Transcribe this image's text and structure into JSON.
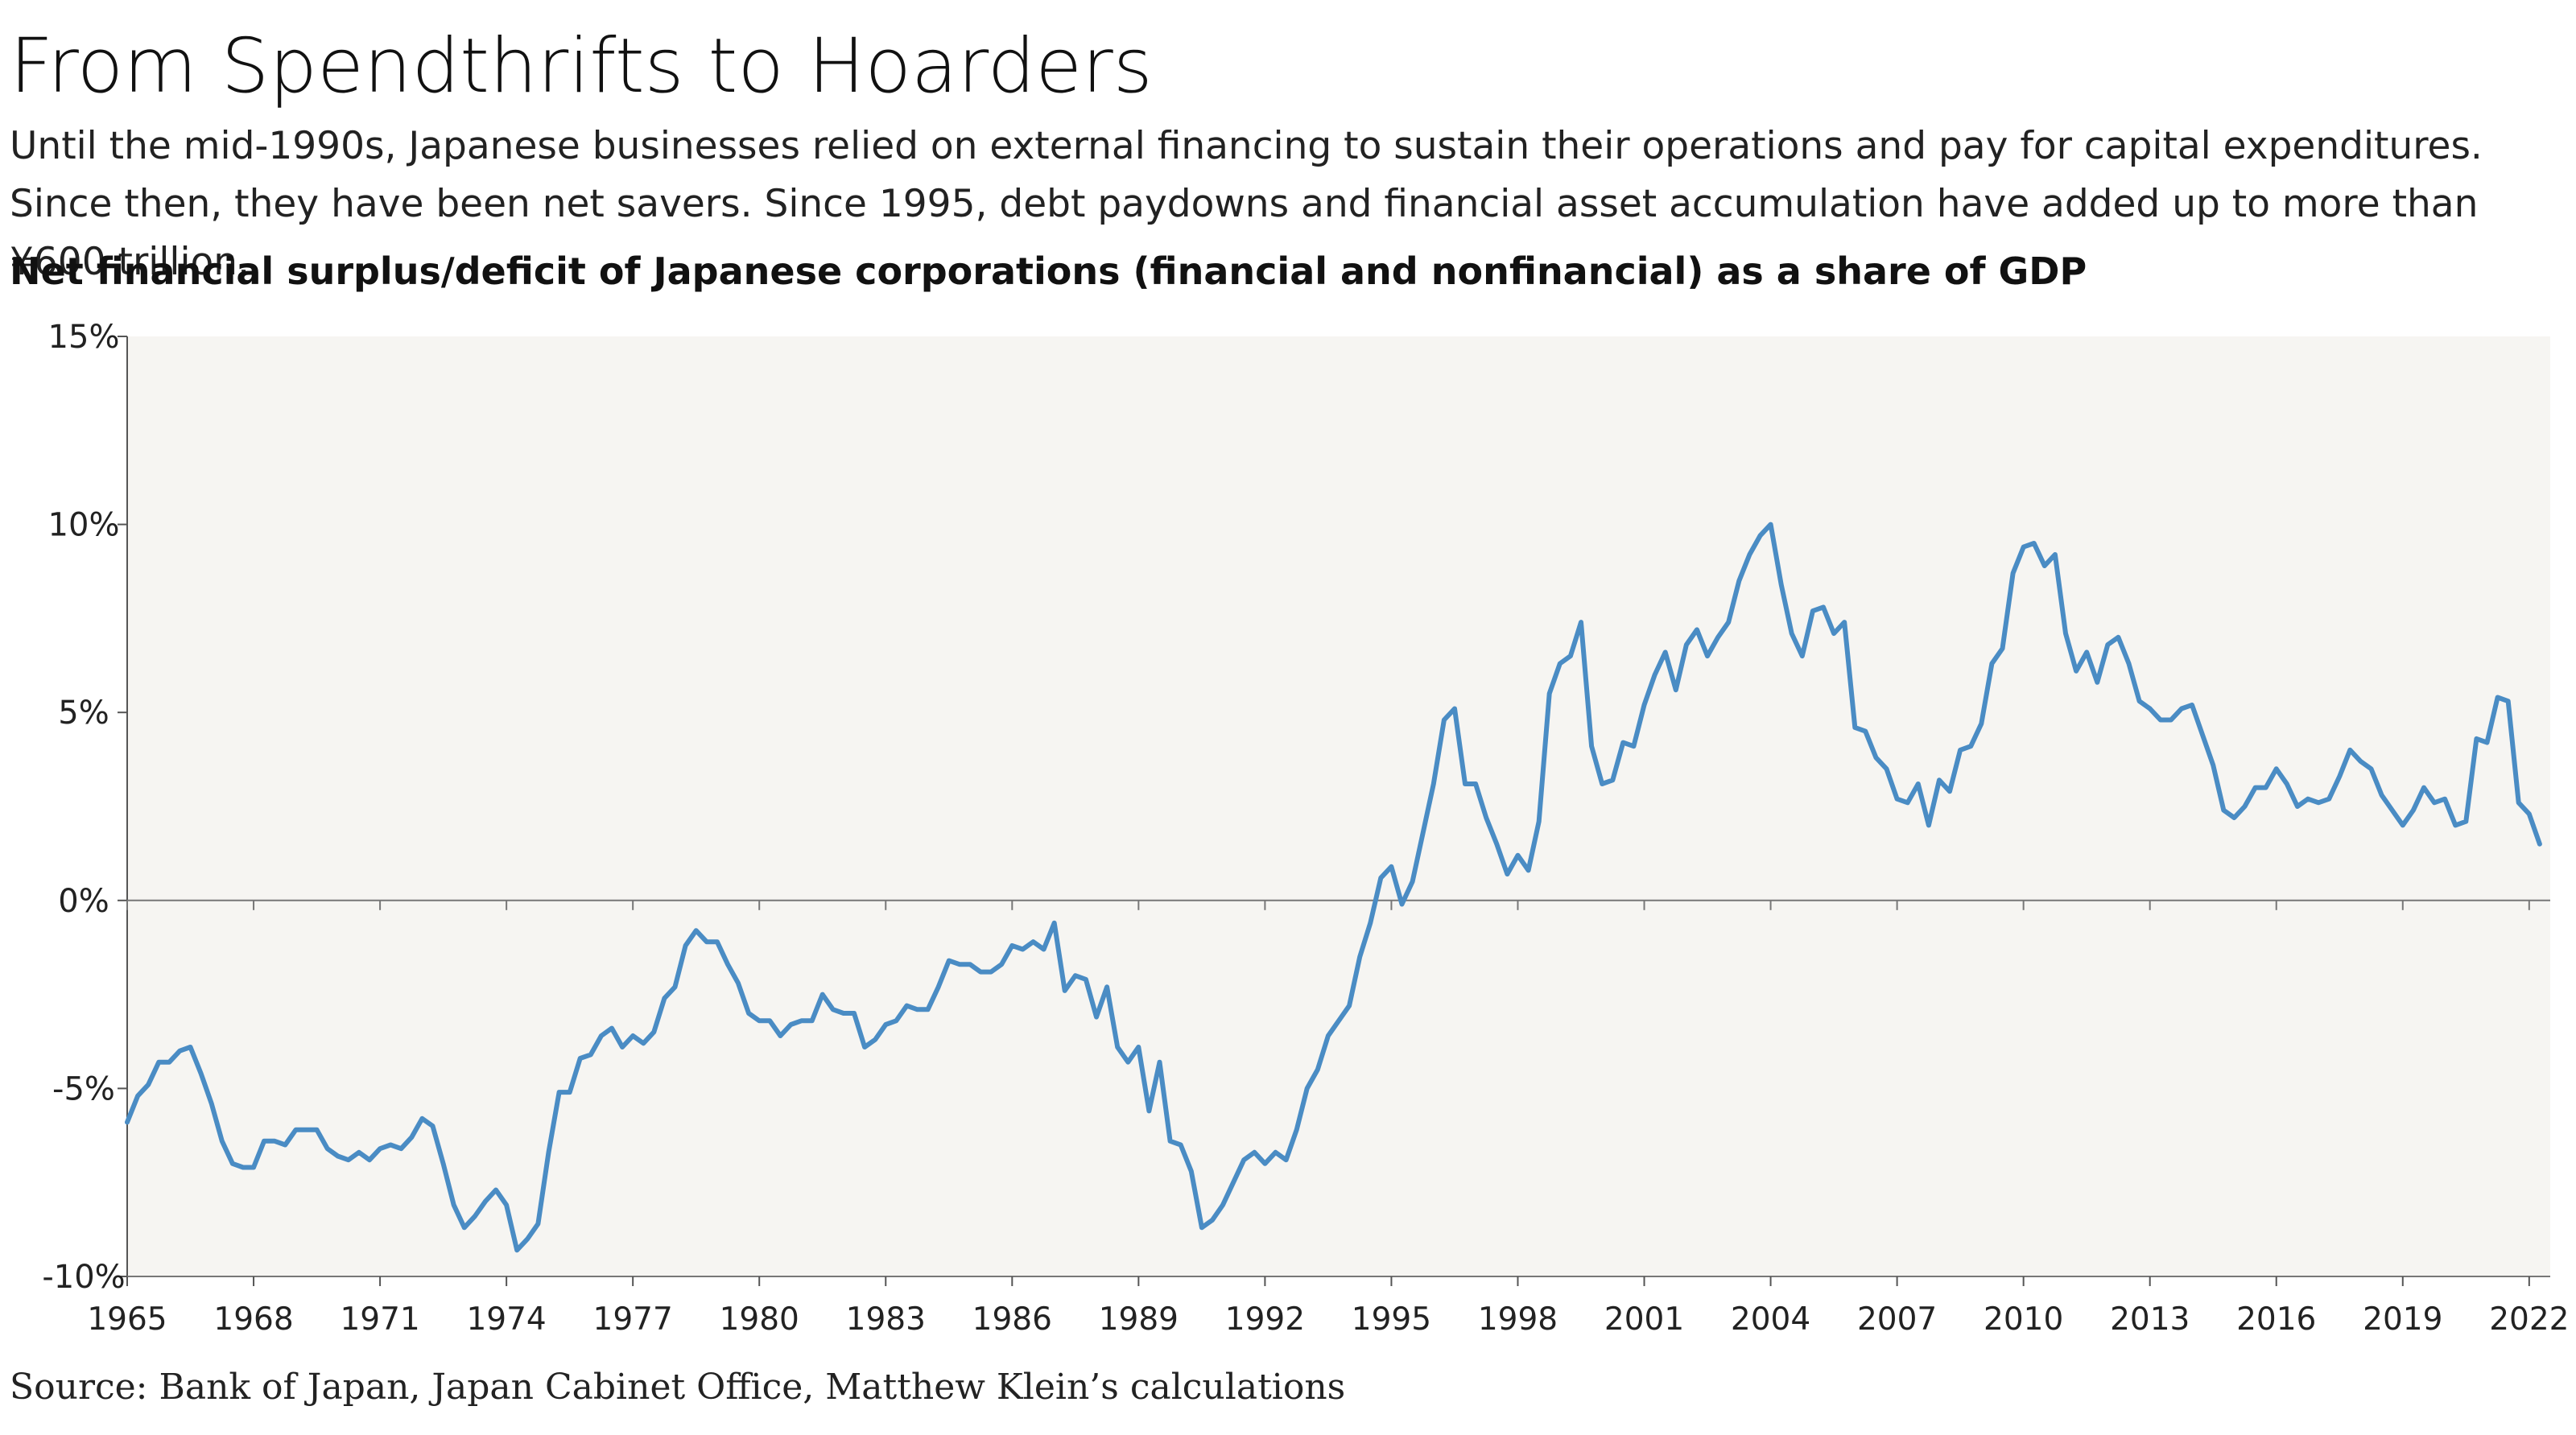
{
  "title": "From Spendthrifts to Hoarders",
  "subtitle": "Until the mid-1990s, Japanese businesses relied on external financing to sustain their operations and pay for capital expenditures. Since then, they have been net savers. Since 1995, debt paydowns and financial asset accumulation have added up to more than ¥600 trillion.",
  "chart_heading": "Net financial surplus/deficit of Japanese corporations (financial and nonfinancial) as a share of GDP",
  "source": "Source: Bank of Japan, Japan Cabinet Office, Matthew Klein’s calculations",
  "chart_data": {
    "type": "line",
    "title": "Net financial surplus/deficit of Japanese corporations (financial and nonfinancial) as a share of GDP",
    "xlabel": "",
    "ylabel": "",
    "xlim": [
      1965,
      2022.5
    ],
    "ylim": [
      -10,
      15
    ],
    "y_ticks": [
      -10,
      -5,
      0,
      5,
      10,
      15
    ],
    "y_tick_labels": [
      "-10%",
      "-5%",
      "0%",
      "5%",
      "10%",
      "15%"
    ],
    "x_ticks": [
      1965,
      1968,
      1971,
      1974,
      1977,
      1980,
      1983,
      1986,
      1989,
      1992,
      1995,
      1998,
      2001,
      2004,
      2007,
      2010,
      2013,
      2016,
      2019,
      2022
    ],
    "x_tick_labels": [
      "1965",
      "1968",
      "1971",
      "1974",
      "1977",
      "1980",
      "1983",
      "1986",
      "1989",
      "1992",
      "1995",
      "1998",
      "2001",
      "2004",
      "2007",
      "2010",
      "2013",
      "2016",
      "2019",
      "2022"
    ],
    "grid": false,
    "line_color": "#4a8cc4",
    "background_color": "#f6f5f2",
    "series": [
      {
        "name": "",
        "points": [
          [
            1965.0,
            -5.9
          ],
          [
            1965.25,
            -5.2
          ],
          [
            1965.5,
            -4.9
          ],
          [
            1965.75,
            -4.3
          ],
          [
            1966.0,
            -4.3
          ],
          [
            1966.25,
            -4.0
          ],
          [
            1966.5,
            -3.9
          ],
          [
            1966.75,
            -4.6
          ],
          [
            1967.0,
            -5.4
          ],
          [
            1967.25,
            -6.4
          ],
          [
            1967.5,
            -7.0
          ],
          [
            1967.75,
            -7.1
          ],
          [
            1968.0,
            -7.1
          ],
          [
            1968.25,
            -6.4
          ],
          [
            1968.5,
            -6.4
          ],
          [
            1968.75,
            -6.5
          ],
          [
            1969.0,
            -6.1
          ],
          [
            1969.25,
            -6.1
          ],
          [
            1969.5,
            -6.1
          ],
          [
            1969.75,
            -6.6
          ],
          [
            1970.0,
            -6.8
          ],
          [
            1970.25,
            -6.9
          ],
          [
            1970.5,
            -6.7
          ],
          [
            1970.75,
            -6.9
          ],
          [
            1971.0,
            -6.6
          ],
          [
            1971.25,
            -6.5
          ],
          [
            1971.5,
            -6.6
          ],
          [
            1971.75,
            -6.3
          ],
          [
            1972.0,
            -5.8
          ],
          [
            1972.25,
            -6.0
          ],
          [
            1972.5,
            -7.0
          ],
          [
            1972.75,
            -8.1
          ],
          [
            1973.0,
            -8.7
          ],
          [
            1973.25,
            -8.4
          ],
          [
            1973.5,
            -8.0
          ],
          [
            1973.75,
            -7.7
          ],
          [
            1974.0,
            -8.1
          ],
          [
            1974.25,
            -9.3
          ],
          [
            1974.5,
            -9.0
          ],
          [
            1974.75,
            -8.6
          ],
          [
            1975.0,
            -6.7
          ],
          [
            1975.25,
            -5.1
          ],
          [
            1975.5,
            -5.1
          ],
          [
            1975.75,
            -4.2
          ],
          [
            1976.0,
            -4.1
          ],
          [
            1976.25,
            -3.6
          ],
          [
            1976.5,
            -3.4
          ],
          [
            1976.75,
            -3.9
          ],
          [
            1977.0,
            -3.6
          ],
          [
            1977.25,
            -3.8
          ],
          [
            1977.5,
            -3.5
          ],
          [
            1977.75,
            -2.6
          ],
          [
            1978.0,
            -2.3
          ],
          [
            1978.25,
            -1.2
          ],
          [
            1978.5,
            -0.8
          ],
          [
            1978.75,
            -1.1
          ],
          [
            1979.0,
            -1.1
          ],
          [
            1979.25,
            -1.7
          ],
          [
            1979.5,
            -2.2
          ],
          [
            1979.75,
            -3.0
          ],
          [
            1980.0,
            -3.2
          ],
          [
            1980.25,
            -3.2
          ],
          [
            1980.5,
            -3.6
          ],
          [
            1980.75,
            -3.3
          ],
          [
            1981.0,
            -3.2
          ],
          [
            1981.25,
            -3.2
          ],
          [
            1981.5,
            -2.5
          ],
          [
            1981.75,
            -2.9
          ],
          [
            1982.0,
            -3.0
          ],
          [
            1982.25,
            -3.0
          ],
          [
            1982.5,
            -3.9
          ],
          [
            1982.75,
            -3.7
          ],
          [
            1983.0,
            -3.3
          ],
          [
            1983.25,
            -3.2
          ],
          [
            1983.5,
            -2.8
          ],
          [
            1983.75,
            -2.9
          ],
          [
            1984.0,
            -2.9
          ],
          [
            1984.25,
            -2.3
          ],
          [
            1984.5,
            -1.6
          ],
          [
            1984.75,
            -1.7
          ],
          [
            1985.0,
            -1.7
          ],
          [
            1985.25,
            -1.9
          ],
          [
            1985.5,
            -1.9
          ],
          [
            1985.75,
            -1.7
          ],
          [
            1986.0,
            -1.2
          ],
          [
            1986.25,
            -1.3
          ],
          [
            1986.5,
            -1.1
          ],
          [
            1986.75,
            -1.3
          ],
          [
            1987.0,
            -0.6
          ],
          [
            1987.25,
            -2.4
          ],
          [
            1987.5,
            -2.0
          ],
          [
            1987.75,
            -2.1
          ],
          [
            1988.0,
            -3.1
          ],
          [
            1988.25,
            -2.3
          ],
          [
            1988.5,
            -3.9
          ],
          [
            1988.75,
            -4.3
          ],
          [
            1989.0,
            -3.9
          ],
          [
            1989.25,
            -5.6
          ],
          [
            1989.5,
            -4.3
          ],
          [
            1989.75,
            -6.4
          ],
          [
            1990.0,
            -6.5
          ],
          [
            1990.25,
            -7.2
          ],
          [
            1990.5,
            -8.7
          ],
          [
            1990.75,
            -8.5
          ],
          [
            1991.0,
            -8.1
          ],
          [
            1991.25,
            -7.5
          ],
          [
            1991.5,
            -6.9
          ],
          [
            1991.75,
            -6.7
          ],
          [
            1992.0,
            -7.0
          ],
          [
            1992.25,
            -6.7
          ],
          [
            1992.5,
            -6.9
          ],
          [
            1992.75,
            -6.1
          ],
          [
            1993.0,
            -5.0
          ],
          [
            1993.25,
            -4.5
          ],
          [
            1993.5,
            -3.6
          ],
          [
            1993.75,
            -3.2
          ],
          [
            1994.0,
            -2.8
          ],
          [
            1994.25,
            -1.5
          ],
          [
            1994.5,
            -0.6
          ],
          [
            1994.75,
            0.6
          ],
          [
            1995.0,
            0.9
          ],
          [
            1995.25,
            -0.1
          ],
          [
            1995.5,
            0.5
          ],
          [
            1995.75,
            1.8
          ],
          [
            1996.0,
            3.1
          ],
          [
            1996.25,
            4.8
          ],
          [
            1996.5,
            5.1
          ],
          [
            1996.75,
            3.1
          ],
          [
            1997.0,
            3.1
          ],
          [
            1997.25,
            2.2
          ],
          [
            1997.5,
            1.5
          ],
          [
            1997.75,
            0.7
          ],
          [
            1998.0,
            1.2
          ],
          [
            1998.25,
            0.8
          ],
          [
            1998.5,
            2.1
          ],
          [
            1998.75,
            5.5
          ],
          [
            1999.0,
            6.3
          ],
          [
            1999.25,
            6.5
          ],
          [
            1999.5,
            7.4
          ],
          [
            1999.75,
            4.1
          ],
          [
            2000.0,
            3.1
          ],
          [
            2000.25,
            3.2
          ],
          [
            2000.5,
            4.2
          ],
          [
            2000.75,
            4.1
          ],
          [
            2001.0,
            5.2
          ],
          [
            2001.25,
            6.0
          ],
          [
            2001.5,
            6.6
          ],
          [
            2001.75,
            5.6
          ],
          [
            2002.0,
            6.8
          ],
          [
            2002.25,
            7.2
          ],
          [
            2002.5,
            6.5
          ],
          [
            2002.75,
            7.0
          ],
          [
            2003.0,
            7.4
          ],
          [
            2003.25,
            8.5
          ],
          [
            2003.5,
            9.2
          ],
          [
            2003.75,
            9.7
          ],
          [
            2004.0,
            10.0
          ],
          [
            2004.25,
            8.4
          ],
          [
            2004.5,
            7.1
          ],
          [
            2004.75,
            6.5
          ],
          [
            2005.0,
            7.7
          ],
          [
            2005.25,
            7.8
          ],
          [
            2005.5,
            7.1
          ],
          [
            2005.75,
            7.4
          ],
          [
            2006.0,
            4.6
          ],
          [
            2006.25,
            4.5
          ],
          [
            2006.5,
            3.8
          ],
          [
            2006.75,
            3.5
          ],
          [
            2007.0,
            2.7
          ],
          [
            2007.25,
            2.6
          ],
          [
            2007.5,
            3.1
          ],
          [
            2007.75,
            2.0
          ],
          [
            2008.0,
            3.2
          ],
          [
            2008.25,
            2.9
          ],
          [
            2008.5,
            4.0
          ],
          [
            2008.75,
            4.1
          ],
          [
            2009.0,
            4.7
          ],
          [
            2009.25,
            6.3
          ],
          [
            2009.5,
            6.7
          ],
          [
            2009.75,
            8.7
          ],
          [
            2010.0,
            9.4
          ],
          [
            2010.25,
            9.5
          ],
          [
            2010.5,
            8.9
          ],
          [
            2010.75,
            9.2
          ],
          [
            2011.0,
            7.1
          ],
          [
            2011.25,
            6.1
          ],
          [
            2011.5,
            6.6
          ],
          [
            2011.75,
            5.8
          ],
          [
            2012.0,
            6.8
          ],
          [
            2012.25,
            7.0
          ],
          [
            2012.5,
            6.3
          ],
          [
            2012.75,
            5.3
          ],
          [
            2013.0,
            5.1
          ],
          [
            2013.25,
            4.8
          ],
          [
            2013.5,
            4.8
          ],
          [
            2013.75,
            5.1
          ],
          [
            2014.0,
            5.2
          ],
          [
            2014.25,
            4.4
          ],
          [
            2014.5,
            3.6
          ],
          [
            2014.75,
            2.4
          ],
          [
            2015.0,
            2.2
          ],
          [
            2015.25,
            2.5
          ],
          [
            2015.5,
            3.0
          ],
          [
            2015.75,
            3.0
          ],
          [
            2016.0,
            3.5
          ],
          [
            2016.25,
            3.1
          ],
          [
            2016.5,
            2.5
          ],
          [
            2016.75,
            2.7
          ],
          [
            2017.0,
            2.6
          ],
          [
            2017.25,
            2.7
          ],
          [
            2017.5,
            3.3
          ],
          [
            2017.75,
            4.0
          ],
          [
            2018.0,
            3.7
          ],
          [
            2018.25,
            3.5
          ],
          [
            2018.5,
            2.8
          ],
          [
            2018.75,
            2.4
          ],
          [
            2019.0,
            2.0
          ],
          [
            2019.25,
            2.4
          ],
          [
            2019.5,
            3.0
          ],
          [
            2019.75,
            2.6
          ],
          [
            2020.0,
            2.7
          ],
          [
            2020.25,
            2.0
          ],
          [
            2020.5,
            2.1
          ],
          [
            2020.75,
            4.3
          ],
          [
            2021.0,
            4.2
          ],
          [
            2021.25,
            5.4
          ],
          [
            2021.5,
            5.3
          ],
          [
            2021.75,
            2.6
          ],
          [
            2022.0,
            2.3
          ],
          [
            2022.25,
            1.5
          ]
        ]
      }
    ]
  }
}
